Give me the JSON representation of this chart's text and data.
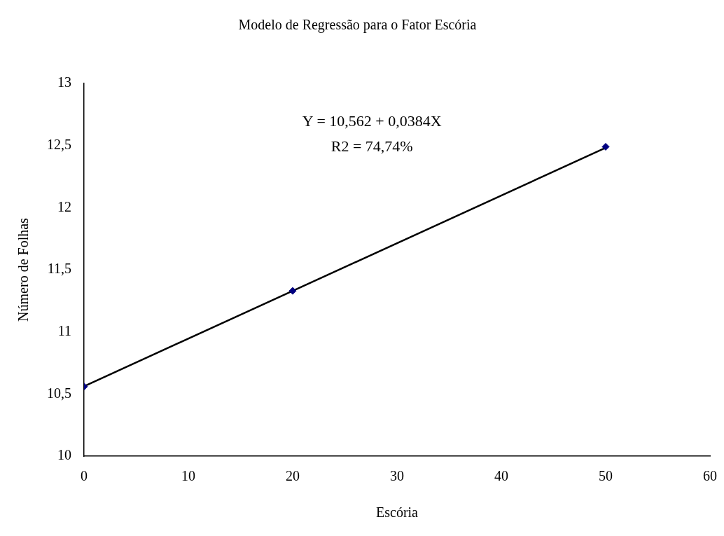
{
  "chart_data": {
    "type": "scatter",
    "title": "Modelo de Regressão para o Fator Escória",
    "xlabel": "Escória",
    "ylabel": "Número de Folhas",
    "series": [
      {
        "type": "scatter",
        "x": [
          0,
          20,
          50
        ],
        "values": [
          10.56,
          11.33,
          12.49
        ],
        "color": "#000080",
        "marker": "diamond"
      },
      {
        "type": "line",
        "x": [
          0,
          50
        ],
        "values": [
          10.562,
          12.482
        ],
        "color": "#000000",
        "marker": "none",
        "line_style": "solid"
      }
    ],
    "xlim": [
      0,
      60
    ],
    "xticks": [
      0,
      10,
      20,
      30,
      40,
      50,
      60
    ],
    "ylim": [
      10,
      13
    ],
    "yticks": [
      10,
      {
        "value": 10.5,
        "label": "10,5"
      },
      11,
      {
        "value": 11.5,
        "label": "11,5"
      },
      12,
      {
        "value": 12.5,
        "label": "12,5"
      },
      13
    ],
    "annotations": [
      "Y = 10,562 + 0,0384X",
      "R2 = 74,74%"
    ],
    "grid": false,
    "legend": false
  }
}
